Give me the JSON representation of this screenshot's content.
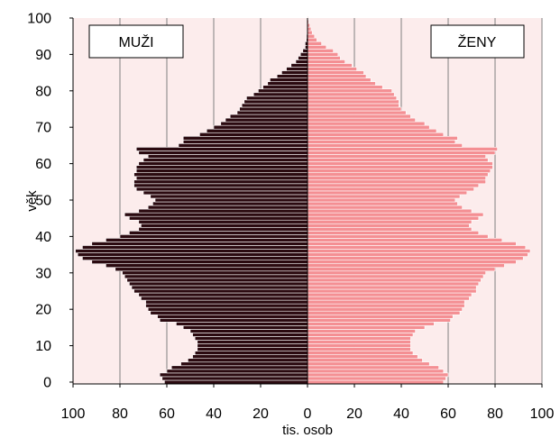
{
  "chart_data": {
    "type": "bar",
    "orientation": "horizontal",
    "subtype": "population-pyramid",
    "xlabel": "tis. osob",
    "ylabel": "věk",
    "xlim": [
      0,
      100
    ],
    "ylim": [
      0,
      100
    ],
    "x_ticks": [
      "100",
      "80",
      "60",
      "40",
      "20",
      "0",
      "20",
      "40",
      "60",
      "80",
      "100"
    ],
    "y_ticks": [
      "0",
      "10",
      "20",
      "30",
      "40",
      "50",
      "60",
      "70",
      "80",
      "90",
      "100"
    ],
    "grid": "vertical",
    "series": [
      {
        "name": "MUŽI",
        "side": "left",
        "color": "#2b0a10",
        "values": [
          61,
          62,
          63,
          60,
          58,
          54,
          51,
          49,
          48,
          47,
          47,
          47,
          48,
          49,
          50,
          53,
          56,
          63,
          64,
          67,
          68,
          69,
          69,
          71,
          72,
          74,
          75,
          76,
          77,
          78,
          79,
          82,
          86,
          92,
          96,
          98,
          99,
          96,
          92,
          86,
          80,
          76,
          72,
          71,
          72,
          76,
          78,
          72,
          68,
          66,
          65,
          67,
          70,
          73,
          74,
          74,
          73,
          74,
          73,
          73,
          72,
          70,
          68,
          72,
          73,
          55,
          53,
          53,
          46,
          43,
          40,
          37,
          35,
          33,
          30,
          29,
          28,
          27,
          26,
          23,
          21,
          19,
          17,
          16,
          13,
          11,
          9,
          7,
          5,
          4,
          3,
          2,
          1,
          1,
          0.5,
          0.4,
          0.3,
          0.2,
          0.1,
          0.1,
          0.1
        ]
      },
      {
        "name": "ŽENY",
        "side": "right",
        "color": "#f48f93",
        "values": [
          58,
          59,
          60,
          58,
          56,
          52,
          49,
          47,
          45,
          44,
          44,
          44,
          44,
          45,
          46,
          50,
          54,
          61,
          62,
          65,
          66,
          67,
          67,
          69,
          70,
          72,
          72,
          73,
          74,
          75,
          76,
          80,
          84,
          89,
          92,
          94,
          95,
          93,
          89,
          83,
          77,
          73,
          70,
          69,
          70,
          73,
          75,
          70,
          66,
          64,
          63,
          65,
          68,
          71,
          73,
          76,
          76,
          77,
          78,
          79,
          79,
          77,
          76,
          80,
          81,
          66,
          63,
          64,
          58,
          55,
          52,
          50,
          46,
          44,
          42,
          40,
          39,
          39,
          38,
          37,
          36,
          32,
          29,
          27,
          25,
          24,
          21,
          19,
          16,
          14,
          13,
          11,
          8,
          6,
          4,
          3,
          2,
          1.5,
          1,
          0.5,
          0.3
        ]
      }
    ]
  },
  "legend": {
    "left_box": "MUŽI",
    "right_box": "ŽENY"
  },
  "colors": {
    "plot_background": "#fcecec",
    "grid": "#7f7f7f",
    "male_bar": "#2b0a10",
    "female_bar": "#f48f93",
    "bar_edge": "#ffffff"
  }
}
